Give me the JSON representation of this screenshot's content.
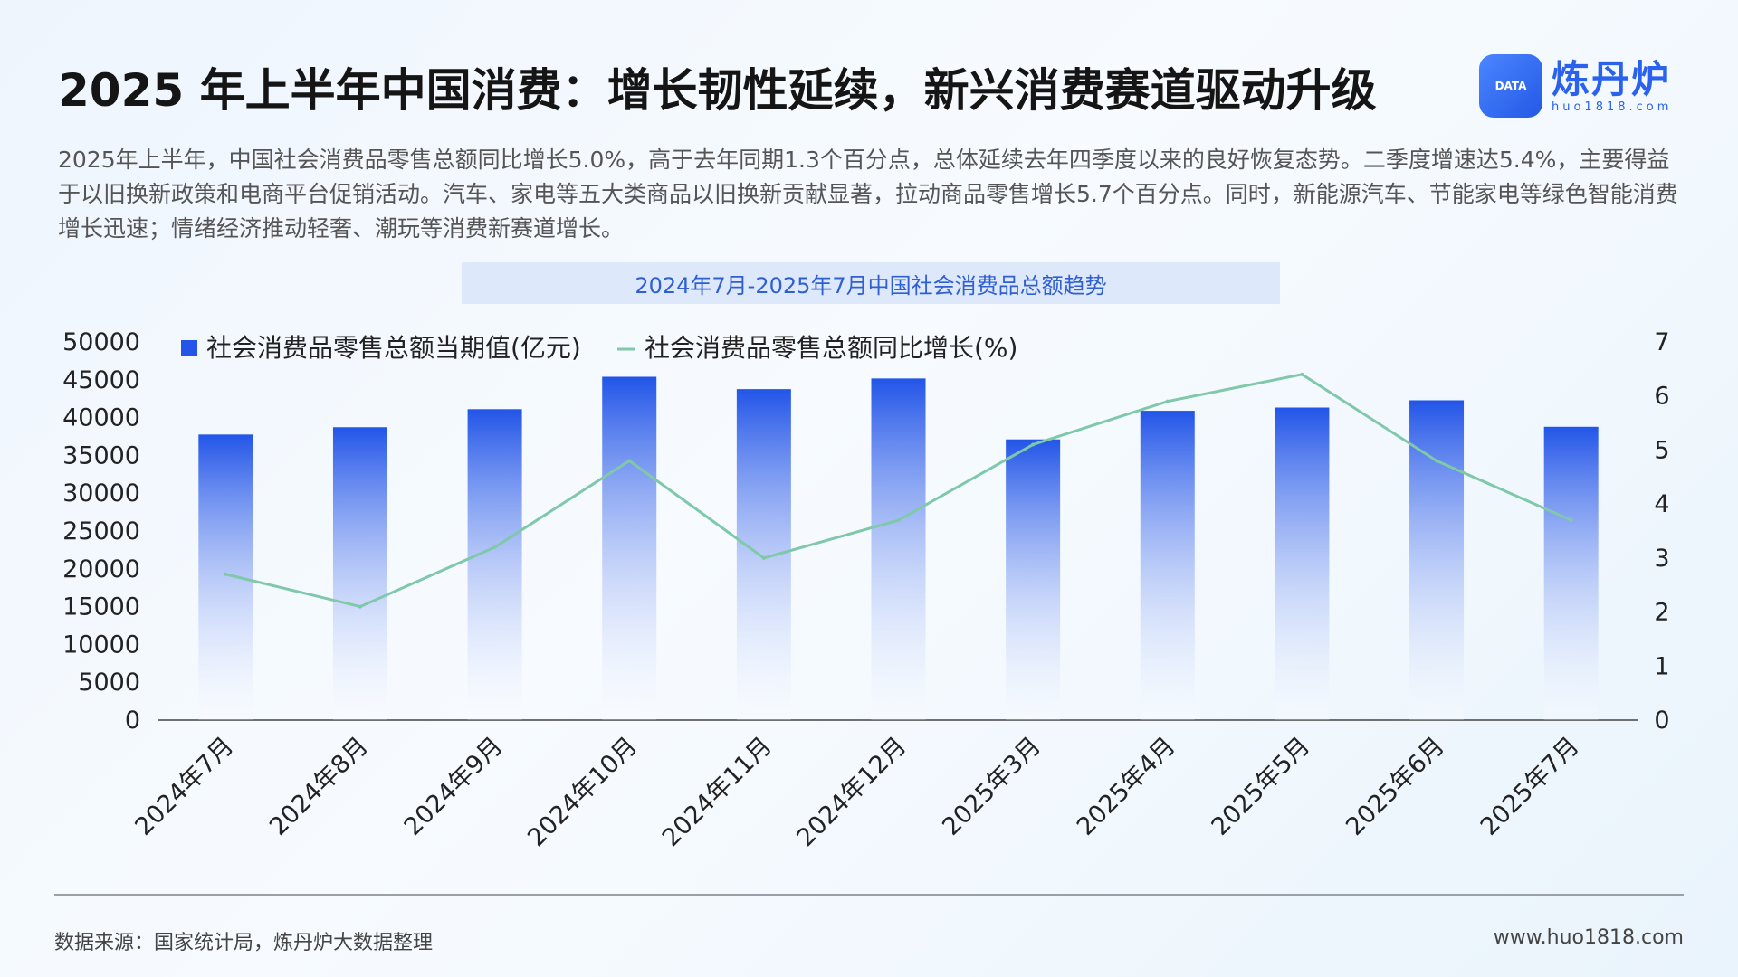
{
  "header": {
    "title": "2025 年上半年中国消费：增长韧性延续，新兴消费赛道驱动升级",
    "logo_name": "炼丹炉",
    "logo_url": "huo1818.com",
    "logo_badge": "DATA"
  },
  "description": "2025年上半年，中国社会消费品零售总额同比增长5.0%，高于去年同期1.3个百分点，总体延续去年四季度以来的良好恢复态势。二季度增速达5.4%，主要得益于以旧换新政策和电商平台促销活动。汽车、家电等五大类商品以旧换新贡献显著，拉动商品零售增长5.7个百分点。同时，新能源汽车、节能家电等绿色智能消费增长迅速；情绪经济推动轻奢、潮玩等消费新赛道增长。",
  "chart_data": {
    "type": "bar",
    "title": "2024年7月-2025年7月中国社会消费品总额趋势",
    "categories": [
      "2024年7月",
      "2024年8月",
      "2024年9月",
      "2024年10月",
      "2024年11月",
      "2024年12月",
      "2025年3月",
      "2025年4月",
      "2025年5月",
      "2025年6月",
      "2025年7月"
    ],
    "series": [
      {
        "name": "社会消费品零售总额当期值(亿元)",
        "type": "bar",
        "axis": "left",
        "values": [
          37757,
          38726,
          41112,
          45396,
          43763,
          45172,
          37116,
          40901,
          41327,
          42287,
          38780
        ]
      },
      {
        "name": "社会消费品零售总额同比增长(%)",
        "type": "line",
        "axis": "right",
        "values": [
          2.7,
          2.1,
          3.2,
          4.8,
          3.0,
          3.7,
          5.1,
          5.9,
          6.4,
          4.8,
          3.7
        ]
      }
    ],
    "ylim_left": [
      0,
      50000
    ],
    "ylim_right": [
      0,
      7
    ],
    "yticks_left": [
      "0",
      "5000",
      "10000",
      "15000",
      "20000",
      "25000",
      "30000",
      "35000",
      "40000",
      "45000",
      "50000"
    ],
    "yticks_right": [
      "0",
      "1",
      "2",
      "3",
      "4",
      "5",
      "6",
      "7"
    ],
    "legend": "top-left",
    "grid": false,
    "colors": {
      "bar_top": "#2255e8",
      "bar_bottom": "#ffffff",
      "line": "#7fc8a9"
    }
  },
  "footer": {
    "source": "数据来源：国家统计局，炼丹炉大数据整理",
    "website": "www.huo1818.com"
  }
}
